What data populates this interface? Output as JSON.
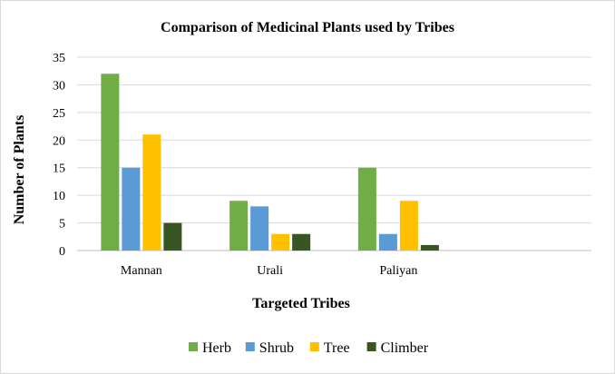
{
  "chart_data": {
    "type": "bar",
    "title": "Comparison of Medicinal Plants used by Tribes",
    "xlabel": "Targeted Tribes",
    "ylabel": "Number of Plants",
    "categories": [
      "Mannan",
      "Urali",
      "Paliyan",
      ""
    ],
    "series": [
      {
        "name": "Herb",
        "values": [
          32,
          9,
          15,
          null
        ],
        "color": "#70ad47"
      },
      {
        "name": "Shrub",
        "values": [
          15,
          8,
          3,
          null
        ],
        "color": "#5b9bd5"
      },
      {
        "name": "Tree",
        "values": [
          21,
          3,
          9,
          null
        ],
        "color": "#ffc000"
      },
      {
        "name": "Climber",
        "values": [
          5,
          3,
          1,
          null
        ],
        "color": "#375623"
      }
    ],
    "ylim": [
      0,
      35
    ],
    "yticks": [
      0,
      5,
      10,
      15,
      20,
      25,
      30,
      35
    ],
    "grid": true,
    "legend_position": "bottom"
  }
}
